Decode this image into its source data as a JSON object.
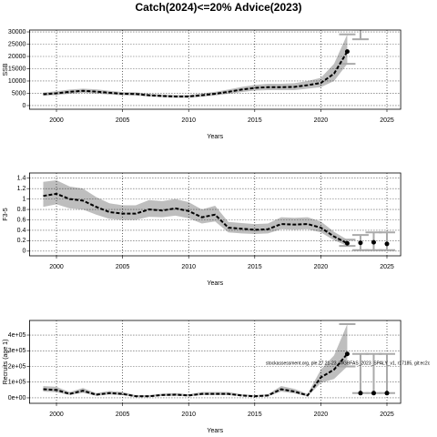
{
  "chart_data": [
    {
      "type": "line",
      "title": "Catch(2024)<=20% Advice(2023)",
      "xlabel": "Years",
      "ylabel": "SSB",
      "x": [
        1999,
        2000,
        2001,
        2002,
        2003,
        2004,
        2005,
        2006,
        2007,
        2008,
        2009,
        2010,
        2011,
        2012,
        2013,
        2014,
        2015,
        2016,
        2017,
        2018,
        2019,
        2020,
        2021,
        2022
      ],
      "values": [
        4600,
        5000,
        5600,
        6000,
        5700,
        5200,
        4800,
        4700,
        4200,
        3900,
        3700,
        3700,
        4200,
        4800,
        5600,
        6500,
        7200,
        7500,
        7500,
        7600,
        8300,
        9200,
        13000,
        22000
      ],
      "lower": [
        4000,
        4300,
        4800,
        5200,
        4900,
        4500,
        4200,
        4100,
        3700,
        3400,
        3200,
        3200,
        3600,
        4100,
        4800,
        5500,
        6100,
        6300,
        6300,
        6300,
        6900,
        7500,
        10000,
        17000
      ],
      "upper": [
        5300,
        5800,
        6500,
        6900,
        6600,
        6000,
        5500,
        5400,
        4800,
        4500,
        4300,
        4300,
        4900,
        5600,
        6500,
        7600,
        8400,
        8900,
        8900,
        9100,
        10000,
        11300,
        17000,
        29000
      ],
      "forecast_x": [
        2023
      ],
      "forecast_lower": [
        27000
      ],
      "forecast_upper": [
        31000
      ],
      "xlim": [
        1997.96,
        2026.04
      ],
      "xticks": [
        2000,
        2005,
        2010,
        2015,
        2020,
        2025
      ],
      "ylim": [
        -1500,
        30750
      ],
      "yticks": [
        0,
        5000,
        10000,
        15000,
        20000,
        25000,
        30000
      ],
      "grid": true,
      "color": "#000000",
      "band_color": "#bebebe"
    },
    {
      "type": "line",
      "xlabel": "Years",
      "ylabel": "F3-5",
      "x": [
        1999,
        2000,
        2001,
        2002,
        2003,
        2004,
        2005,
        2006,
        2007,
        2008,
        2009,
        2010,
        2011,
        2012,
        2013,
        2014,
        2015,
        2016,
        2017,
        2018,
        2019,
        2020,
        2021,
        2022
      ],
      "values": [
        1.06,
        1.1,
        1.0,
        0.97,
        0.85,
        0.75,
        0.72,
        0.72,
        0.8,
        0.78,
        0.82,
        0.77,
        0.65,
        0.7,
        0.45,
        0.43,
        0.41,
        0.42,
        0.52,
        0.51,
        0.52,
        0.45,
        0.28,
        0.15
      ],
      "lower": [
        0.85,
        0.9,
        0.82,
        0.8,
        0.7,
        0.62,
        0.6,
        0.6,
        0.66,
        0.65,
        0.68,
        0.63,
        0.53,
        0.57,
        0.36,
        0.34,
        0.33,
        0.34,
        0.42,
        0.41,
        0.42,
        0.36,
        0.21,
        0.1
      ],
      "upper": [
        1.33,
        1.36,
        1.24,
        1.2,
        1.04,
        0.92,
        0.88,
        0.88,
        0.98,
        0.96,
        1.0,
        0.94,
        0.8,
        0.87,
        0.56,
        0.54,
        0.52,
        0.53,
        0.65,
        0.64,
        0.65,
        0.57,
        0.37,
        0.22
      ],
      "forecast_x": [
        2023,
        2024,
        2025
      ],
      "forecast_values": [
        0.16,
        0.17,
        0.14
      ],
      "forecast_lower": [
        0.02,
        0.02,
        0.02
      ],
      "forecast_upper": [
        0.31,
        0.36,
        0.36
      ],
      "xlim": [
        1997.96,
        2026.04
      ],
      "xticks": [
        2000,
        2005,
        2010,
        2015,
        2020,
        2025
      ],
      "ylim": [
        -0.09,
        1.5
      ],
      "yticks": [
        0,
        0.2,
        0.4,
        0.6,
        0.8,
        1,
        1.2,
        1.4
      ],
      "grid": true,
      "color": "#000000",
      "band_color": "#bebebe"
    },
    {
      "type": "line",
      "xlabel": "Years",
      "ylabel": "Recruits (age 1)",
      "annotation": "stockassessment.org, ple.27.21-23_WGBFAS_2023_SPALY_v1, r17185, git:ec2c",
      "x": [
        1999,
        2000,
        2001,
        2002,
        2003,
        2004,
        2005,
        2006,
        2007,
        2008,
        2009,
        2010,
        2011,
        2012,
        2013,
        2014,
        2015,
        2016,
        2017,
        2018,
        2019,
        2020,
        2021,
        2022
      ],
      "values": [
        55000,
        50000,
        25000,
        45000,
        20000,
        30000,
        25000,
        10000,
        10000,
        18000,
        20000,
        15000,
        25000,
        25000,
        25000,
        15000,
        10000,
        15000,
        55000,
        40000,
        15000,
        130000,
        180000,
        280000
      ],
      "lower": [
        40000,
        36000,
        17000,
        32000,
        13000,
        21000,
        17000,
        6000,
        6000,
        12000,
        13000,
        10000,
        17000,
        17000,
        17000,
        10000,
        6000,
        10000,
        40000,
        28000,
        9000,
        95000,
        120000,
        200000
      ],
      "upper": [
        75000,
        70000,
        37000,
        63000,
        30000,
        43000,
        37000,
        17000,
        17000,
        27000,
        30000,
        23000,
        37000,
        37000,
        37000,
        23000,
        17000,
        23000,
        75000,
        57000,
        25000,
        180000,
        270000,
        470000
      ],
      "forecast_x": [
        2023,
        2024,
        2025
      ],
      "forecast_values": [
        30000,
        30000,
        30000
      ],
      "forecast_lower": [
        30000,
        30000,
        30000
      ],
      "forecast_upper": [
        280000,
        280000,
        280000
      ],
      "xlim": [
        1997.96,
        2026.04
      ],
      "xticks": [
        2000,
        2005,
        2010,
        2015,
        2020,
        2025
      ],
      "ylim": [
        -35000,
        493000
      ],
      "yticks": [
        {
          "value": 0,
          "label": "0e+00"
        },
        {
          "value": 100000,
          "label": "1e+05"
        },
        {
          "value": 200000,
          "label": "2e+05"
        },
        {
          "value": 300000,
          "label": "3e+05"
        },
        {
          "value": 400000,
          "label": "4e+05"
        }
      ],
      "grid": true,
      "color": "#000000",
      "band_color": "#bebebe"
    }
  ]
}
